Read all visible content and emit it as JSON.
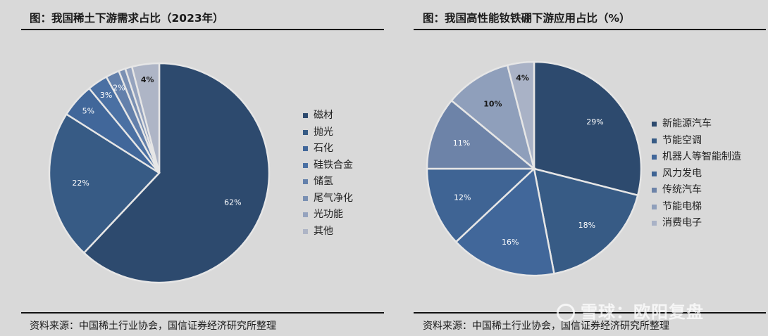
{
  "chart_data": [
    {
      "type": "pie",
      "title": "图：我国稀土下游需求占比（2023年）",
      "source": "资料来源：中国稀土行业协会，国信证券经济研究所整理",
      "legend_position": "right",
      "slices": [
        {
          "name": "磁材",
          "value": 62,
          "label": "62%",
          "color": "#2d4a6e"
        },
        {
          "name": "抛光",
          "value": 22,
          "label": "22%",
          "color": "#375b85"
        },
        {
          "name": "石化",
          "value": 5,
          "label": "5%",
          "color": "#41679a"
        },
        {
          "name": "硅铁合金",
          "value": 3,
          "label": "3%",
          "color": "#4a70a3"
        },
        {
          "name": "储氢",
          "value": 2,
          "label": "2%",
          "color": "#6380ab"
        },
        {
          "name": "尾气净化",
          "value": 1,
          "label": "",
          "color": "#7a90b3"
        },
        {
          "name": "光功能",
          "value": 1,
          "label": "",
          "color": "#95a3be"
        },
        {
          "name": "其他",
          "value": 4,
          "label": "4%",
          "color": "#aeb5c6"
        }
      ]
    },
    {
      "type": "pie",
      "title": "图：我国高性能钕铁硼下游应用占比（%）",
      "source": "资料来源：中国稀土行业协会，国信证券经济研究所整理",
      "legend_position": "right",
      "slices": [
        {
          "name": "新能源汽车",
          "value": 29,
          "label": "29%",
          "color": "#2d4a6e"
        },
        {
          "name": "节能空调",
          "value": 18,
          "label": "18%",
          "color": "#375b85"
        },
        {
          "name": "机器人等智能制造",
          "value": 16,
          "label": "16%",
          "color": "#41679a"
        },
        {
          "name": "风力发电",
          "value": 12,
          "label": "12%",
          "color": "#3f6494"
        },
        {
          "name": "传统汽车",
          "value": 11,
          "label": "11%",
          "color": "#6d83a8"
        },
        {
          "name": "节能电梯",
          "value": 10,
          "label": "10%",
          "color": "#8f9fbb"
        },
        {
          "name": "消费电子",
          "value": 4,
          "label": "4%",
          "color": "#a9b2c6"
        }
      ]
    }
  ],
  "watermark": "雪球：欧阳复盘"
}
